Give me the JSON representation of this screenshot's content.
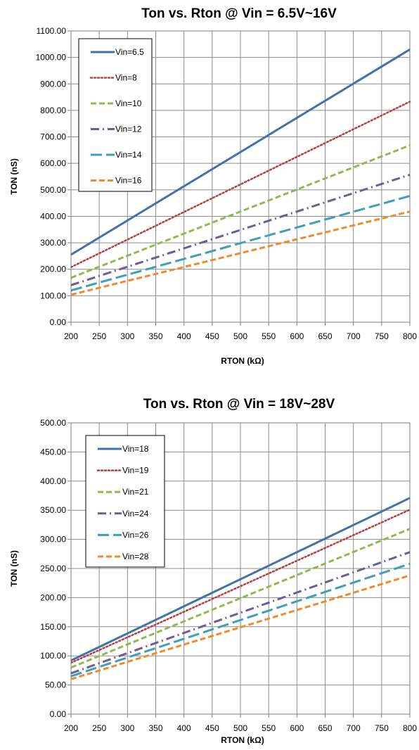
{
  "chart_data": [
    {
      "type": "line",
      "title": "Ton vs. Rton @ Vin = 6.5V~16V",
      "xlabel": "RTON (kΩ)",
      "ylabel": "TON (nS)",
      "xlim": [
        200,
        800
      ],
      "ylim": [
        0,
        1100
      ],
      "x_ticks": [
        "200",
        "250",
        "300",
        "350",
        "400",
        "450",
        "500",
        "550",
        "600",
        "650",
        "700",
        "750",
        "800"
      ],
      "y_ticks": [
        "0.00",
        "100.00",
        "200.00",
        "300.00",
        "400.00",
        "500.00",
        "600.00",
        "700.00",
        "800.00",
        "900.00",
        "1000.00",
        "1100.00"
      ],
      "grid": true,
      "legend_position": "top-left",
      "series": [
        {
          "name": "Vin=6.5",
          "color": "#4472a8",
          "dash": "solid",
          "x": [
            200,
            800
          ],
          "y": [
            255,
            1030
          ]
        },
        {
          "name": "Vin=8",
          "color": "#b0413e",
          "dash": "dot",
          "x": [
            200,
            800
          ],
          "y": [
            208,
            833
          ]
        },
        {
          "name": "Vin=10",
          "color": "#93b84f",
          "dash": "dash",
          "x": [
            200,
            800
          ],
          "y": [
            168,
            668
          ]
        },
        {
          "name": "Vin=12",
          "color": "#705c94",
          "dash": "dashdot",
          "x": [
            200,
            800
          ],
          "y": [
            140,
            557
          ]
        },
        {
          "name": "Vin=14",
          "color": "#3f9fb8",
          "dash": "longdash",
          "x": [
            200,
            800
          ],
          "y": [
            120,
            477
          ]
        },
        {
          "name": "Vin=16",
          "color": "#ee8a2f",
          "dash": "dash",
          "x": [
            200,
            800
          ],
          "y": [
            104,
            418
          ]
        }
      ]
    },
    {
      "type": "line",
      "title": "Ton vs. Rton @ Vin = 18V~28V",
      "xlabel": "RTON (kΩ)",
      "ylabel": "TON (nS)",
      "xlim": [
        200,
        800
      ],
      "ylim": [
        0,
        500
      ],
      "x_ticks": [
        "200",
        "250",
        "300",
        "350",
        "400",
        "450",
        "500",
        "550",
        "600",
        "650",
        "700",
        "750",
        "800"
      ],
      "y_ticks": [
        "0.00",
        "50.00",
        "100.00",
        "150.00",
        "200.00",
        "250.00",
        "300.00",
        "350.00",
        "400.00",
        "450.00",
        "500.00"
      ],
      "grid": true,
      "legend_position": "top-left",
      "series": [
        {
          "name": "Vin=18",
          "color": "#4472a8",
          "dash": "solid",
          "x": [
            200,
            800
          ],
          "y": [
            92,
            371
          ]
        },
        {
          "name": "Vin=19",
          "color": "#b0413e",
          "dash": "dot",
          "x": [
            200,
            800
          ],
          "y": [
            88,
            351
          ]
        },
        {
          "name": "Vin=21",
          "color": "#93b84f",
          "dash": "dash",
          "x": [
            200,
            800
          ],
          "y": [
            80,
            318
          ]
        },
        {
          "name": "Vin=24",
          "color": "#705c94",
          "dash": "dashdot",
          "x": [
            200,
            800
          ],
          "y": [
            70,
            278
          ]
        },
        {
          "name": "Vin=26",
          "color": "#3f9fb8",
          "dash": "longdash",
          "x": [
            200,
            800
          ],
          "y": [
            65,
            258
          ]
        },
        {
          "name": "Vin=28",
          "color": "#ee8a2f",
          "dash": "dash",
          "x": [
            200,
            800
          ],
          "y": [
            60,
            238
          ]
        }
      ]
    }
  ]
}
